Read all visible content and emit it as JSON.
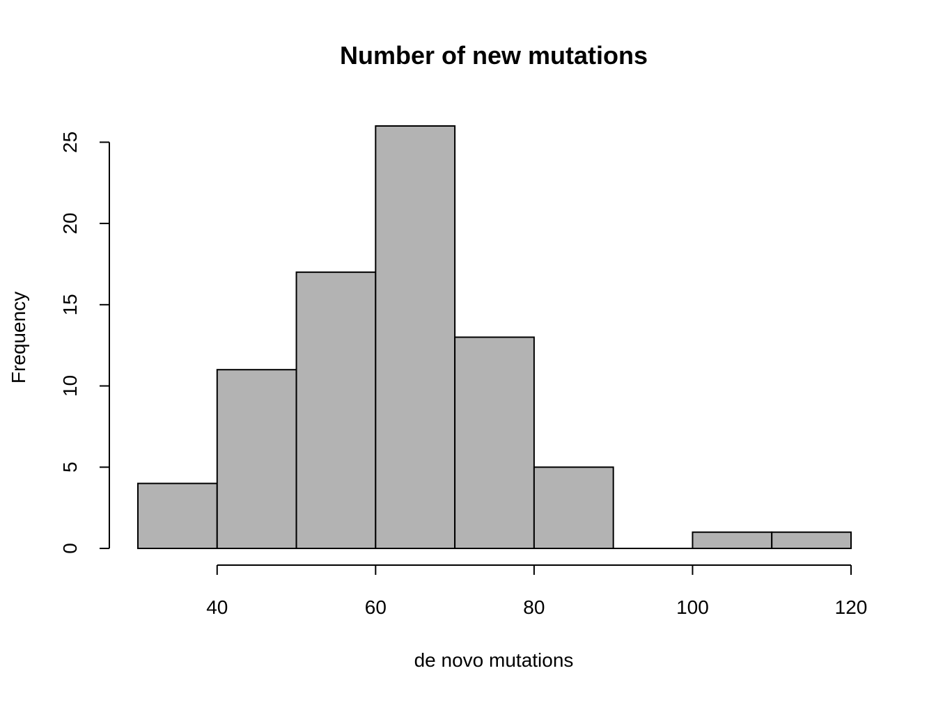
{
  "chart_data": {
    "type": "bar",
    "title": "Number of new mutations",
    "xlabel": "de novo mutations",
    "ylabel": "Frequency",
    "bins": [
      {
        "start": 30,
        "end": 40,
        "count": 4
      },
      {
        "start": 40,
        "end": 50,
        "count": 11
      },
      {
        "start": 50,
        "end": 60,
        "count": 17
      },
      {
        "start": 60,
        "end": 70,
        "count": 26
      },
      {
        "start": 70,
        "end": 80,
        "count": 13
      },
      {
        "start": 80,
        "end": 90,
        "count": 5
      },
      {
        "start": 90,
        "end": 100,
        "count": 0
      },
      {
        "start": 100,
        "end": 110,
        "count": 1
      },
      {
        "start": 110,
        "end": 120,
        "count": 1
      }
    ],
    "x_ticks": [
      {
        "value": 40,
        "label": "40"
      },
      {
        "value": 60,
        "label": "60"
      },
      {
        "value": 80,
        "label": "80"
      },
      {
        "value": 100,
        "label": "100"
      },
      {
        "value": 120,
        "label": "120"
      }
    ],
    "y_ticks": [
      {
        "value": 0,
        "label": "0"
      },
      {
        "value": 5,
        "label": "5"
      },
      {
        "value": 10,
        "label": "10"
      },
      {
        "value": 15,
        "label": "15"
      },
      {
        "value": 20,
        "label": "20"
      },
      {
        "value": 25,
        "label": "25"
      }
    ],
    "xlim": [
      30,
      120
    ],
    "ylim": [
      0,
      26
    ],
    "grid": false,
    "legend": "none",
    "bar_color": "#b3b3b3",
    "edge_color": "#000000"
  }
}
